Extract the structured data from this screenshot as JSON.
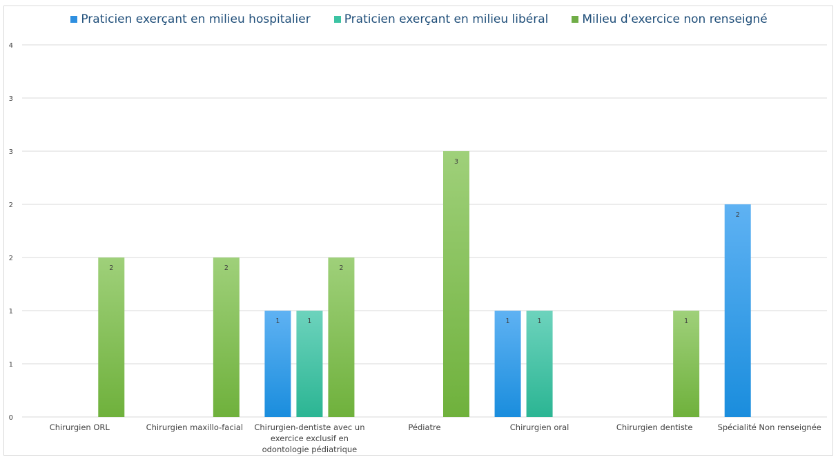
{
  "chart_data": {
    "type": "bar",
    "title": "",
    "xlabel": "",
    "ylabel": "",
    "ylim": [
      0,
      3.5
    ],
    "grid": true,
    "legend_position": "top",
    "categories": [
      [
        "Chirurgien ORL"
      ],
      [
        "Chirurgien maxillo-facial"
      ],
      [
        "Chirurgien-dentiste avec un",
        "exercice exclusif en",
        "odontologie pédiatrique"
      ],
      [
        "Pédiatre"
      ],
      [
        "Chirurgien oral"
      ],
      [
        "Chirurgien dentiste"
      ],
      [
        "Spécialité Non renseignée"
      ]
    ],
    "y_ticks": [
      {
        "value": 0,
        "label": "0"
      },
      {
        "value": 0.5,
        "label": "1"
      },
      {
        "value": 1,
        "label": "1"
      },
      {
        "value": 1.5,
        "label": "2"
      },
      {
        "value": 2,
        "label": "2"
      },
      {
        "value": 2.5,
        "label": "3"
      },
      {
        "value": 3,
        "label": "3"
      },
      {
        "value": 3.5,
        "label": "4"
      }
    ],
    "series": [
      {
        "name": "Praticien exerçant en milieu hospitalier",
        "color_top": "#5fb2f3",
        "color_bottom": "#1a8ddd",
        "legend_color": "#2e8fe0",
        "values": [
          null,
          null,
          1,
          null,
          1,
          null,
          2
        ],
        "value_labels": [
          "",
          "",
          "1",
          "",
          "1",
          "",
          "2"
        ]
      },
      {
        "name": "Praticien exerçant en milieu libéral",
        "color_top": "#6dd3bd",
        "color_bottom": "#2bb593",
        "legend_color": "#3cc3a3",
        "values": [
          null,
          null,
          1,
          null,
          1,
          null,
          null
        ],
        "value_labels": [
          "",
          "",
          "1",
          "",
          "1",
          "",
          ""
        ]
      },
      {
        "name": "Milieu d'exercice non renseigné",
        "color_top": "#9fd07a",
        "color_bottom": "#6fb13c",
        "legend_color": "#70ad47",
        "values": [
          1.5,
          1.5,
          1.5,
          2.5,
          null,
          1,
          null
        ],
        "value_labels": [
          "2",
          "2",
          "2",
          "3",
          "",
          "1",
          ""
        ]
      }
    ]
  }
}
